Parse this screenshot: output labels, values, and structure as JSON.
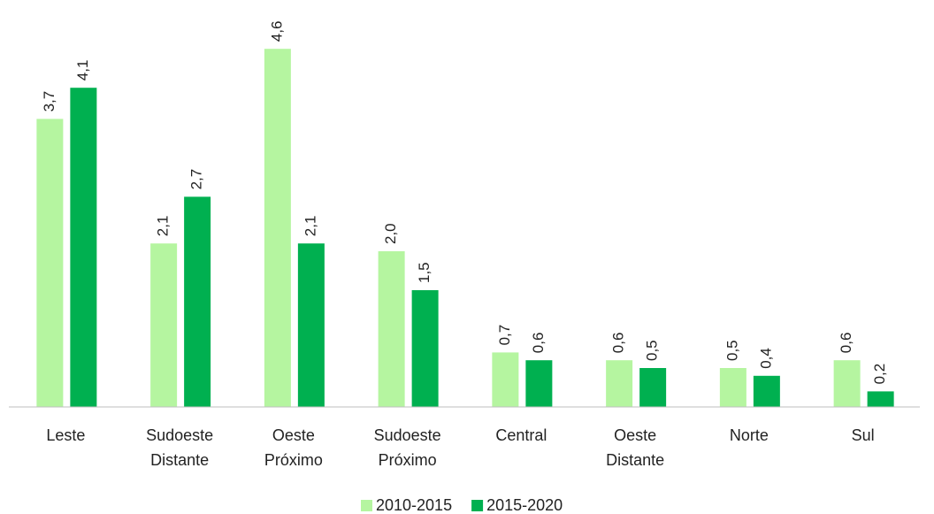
{
  "chart_data": {
    "type": "bar",
    "categories": [
      "Leste",
      "Sudoeste Distante",
      "Oeste Próximo",
      "Sudoeste Próximo",
      "Central",
      "Oeste Distante",
      "Norte",
      "Sul"
    ],
    "series": [
      {
        "name": "2010-2015",
        "color": "#b5f5a0",
        "values": [
          3.7,
          2.1,
          4.6,
          2.0,
          0.7,
          0.6,
          0.5,
          0.6
        ],
        "value_labels": [
          "3,7",
          "2,1",
          "4,6",
          "2,0",
          "0,7",
          "0,6",
          "0,5",
          "0,6"
        ]
      },
      {
        "name": "2015-2020",
        "color": "#00b050",
        "values": [
          4.1,
          2.7,
          2.1,
          1.5,
          0.6,
          0.5,
          0.4,
          0.2
        ],
        "value_labels": [
          "4,1",
          "2,7",
          "2,1",
          "1,5",
          "0,6",
          "0,5",
          "0,4",
          "0,2"
        ]
      }
    ],
    "ylim": [
      0,
      5
    ],
    "legend": "bottom"
  }
}
